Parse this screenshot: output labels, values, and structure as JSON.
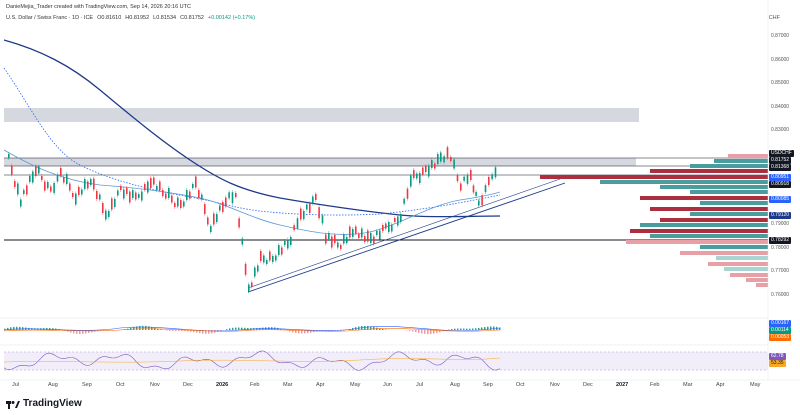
{
  "header": {
    "author_line": "DanieMejia_Trader created with TradingView.com, Sep 14, 2026 20:16 UTC",
    "symbol": "U.S. Dollar / Swiss Franc · 1D · ICE",
    "open": "O0.81610",
    "high": "H0.81952",
    "low": "L0.81534",
    "close": "C0.81752",
    "change": "+0.00142 (+0.17%)",
    "currency": "CHF"
  },
  "price_axis": [
    "0.87000",
    "0.86000",
    "0.85000",
    "0.84000",
    "0.83000",
    "0.82000",
    "0.81000",
    "0.80000",
    "0.79000",
    "0.78000",
    "0.77000",
    "0.76000"
  ],
  "tags": {
    "symbol": "USDCHF",
    "last": "0.81752",
    "level1": "0.81368",
    "level2": "0.80951",
    "level3": "0.80918",
    "level4": "0.80085",
    "level5": "0.79120",
    "level6": "0.78292",
    "macd1": "0.00167",
    "macd2": "0.00114",
    "macd3": "0.00053",
    "rsi1": "62.78",
    "rsi2": "53.35"
  },
  "time_axis": [
    {
      "label": "Jul",
      "bold": false
    },
    {
      "label": "Aug",
      "bold": false
    },
    {
      "label": "Sep",
      "bold": false
    },
    {
      "label": "Oct",
      "bold": false
    },
    {
      "label": "Nov",
      "bold": false
    },
    {
      "label": "Dec",
      "bold": false
    },
    {
      "label": "2026",
      "bold": true
    },
    {
      "label": "Feb",
      "bold": false
    },
    {
      "label": "Mar",
      "bold": false
    },
    {
      "label": "Apr",
      "bold": false
    },
    {
      "label": "May",
      "bold": false
    },
    {
      "label": "Jun",
      "bold": false
    },
    {
      "label": "Jul",
      "bold": false
    },
    {
      "label": "Aug",
      "bold": false
    },
    {
      "label": "Sep",
      "bold": false
    },
    {
      "label": "Oct",
      "bold": false
    },
    {
      "label": "Nov",
      "bold": false
    },
    {
      "label": "Dec",
      "bold": false
    },
    {
      "label": "2027",
      "bold": true
    },
    {
      "label": "Feb",
      "bold": false
    },
    {
      "label": "Mar",
      "bold": false
    },
    {
      "label": "Apr",
      "bold": false
    },
    {
      "label": "May",
      "bold": false
    }
  ],
  "brand": "TradingView",
  "colors": {
    "up": "#089981",
    "down": "#f23645",
    "ma": "#1e3a8a",
    "accent": "#2962ff"
  }
}
